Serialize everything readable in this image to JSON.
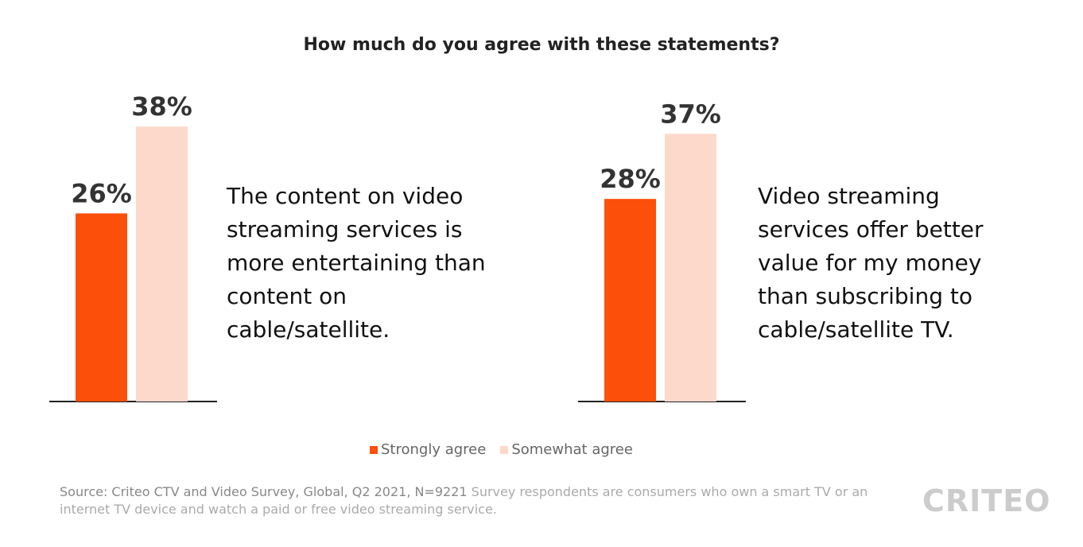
{
  "chart_data": {
    "type": "bar",
    "title": "How much do you agree with these statements?",
    "categories": [
      "The content on video streaming services is more entertaining than content on cable/satellite.",
      "Video streaming services offer better value for my money than subscribing to cable/satellite TV."
    ],
    "series": [
      {
        "name": "Strongly agree",
        "color": "#fc4f0a",
        "values": [
          26,
          28
        ],
        "value_labels": [
          "26%",
          "28%"
        ]
      },
      {
        "name": "Somewhat agree",
        "color": "#fdd9cc",
        "values": [
          38,
          37
        ],
        "value_labels": [
          "38%",
          "37%"
        ]
      }
    ]
  },
  "footer": {
    "source": "Source: Criteo CTV and Video Survey, Global, Q2 2021, N=9221",
    "note": "Survey respondents are consumers who own a smart TV or an internet TV device and watch a paid or free video streaming service.",
    "logo": "CRITEO"
  }
}
